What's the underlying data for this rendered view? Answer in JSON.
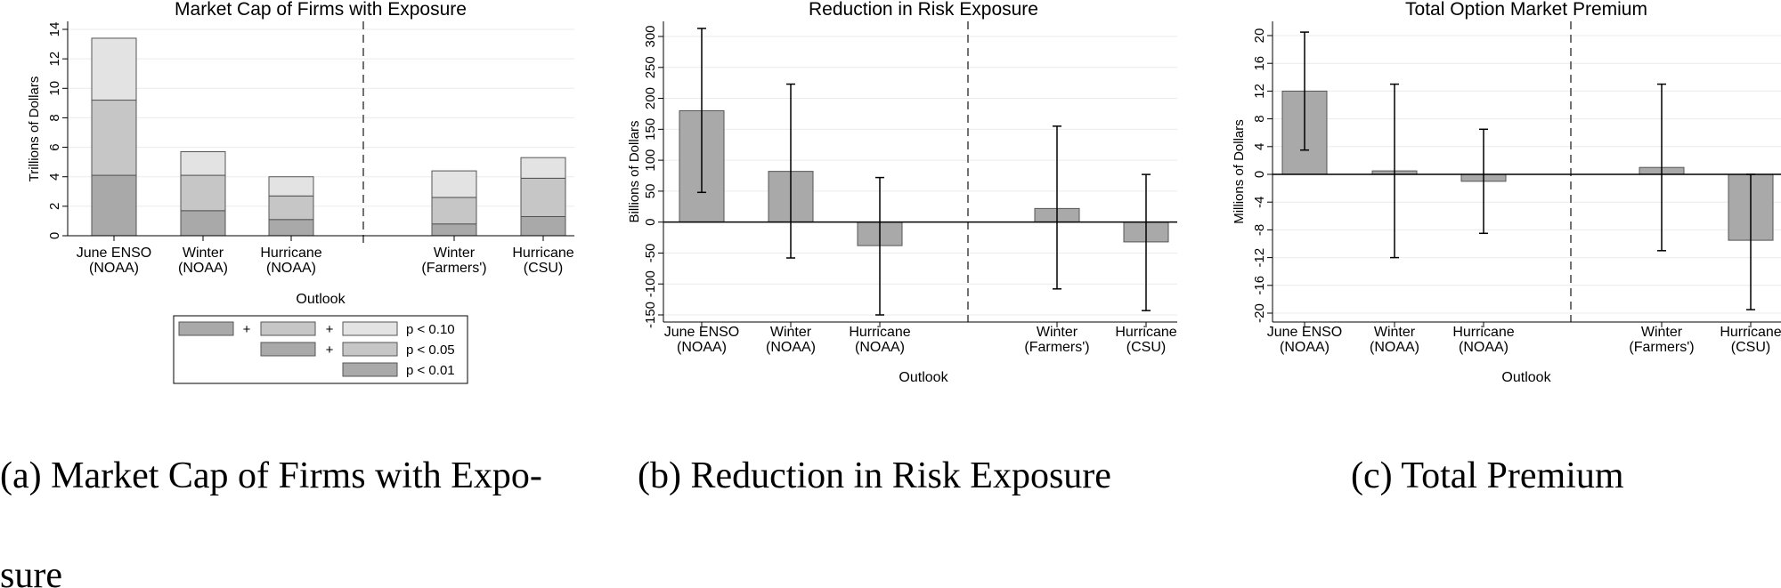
{
  "chart_data": [
    {
      "type": "bar",
      "stacked": true,
      "title": "Market Cap of Firms with Exposure",
      "xlabel": "Outlook",
      "ylabel": "Trillions of Dollars",
      "ylim": [
        0,
        14
      ],
      "yticks": [
        0,
        2,
        4,
        6,
        8,
        10,
        12,
        14
      ],
      "categories": [
        {
          "line1": "June ENSO",
          "line2": "(NOAA)"
        },
        {
          "line1": "Winter",
          "line2": "(NOAA)"
        },
        {
          "line1": "Hurricane",
          "line2": "(NOAA)"
        },
        {
          "line1": "Winter",
          "line2": "(Farmers')"
        },
        {
          "line1": "Hurricane",
          "line2": "(CSU)"
        }
      ],
      "series": [
        {
          "name": "p < 0.01",
          "color": "#a9a9a9",
          "values": [
            4.1,
            1.7,
            1.1,
            0.8,
            1.3
          ]
        },
        {
          "name": "p < 0.05",
          "color": "#c6c6c6",
          "values": [
            5.1,
            2.4,
            1.6,
            1.8,
            2.6
          ]
        },
        {
          "name": "p < 0.10",
          "color": "#e3e3e3",
          "values": [
            4.2,
            1.6,
            1.3,
            1.8,
            1.4
          ]
        }
      ],
      "legend": {
        "row1_label": "p < 0.10",
        "row2_label": "p < 0.05",
        "row3_label": "p < 0.01",
        "plus": "+",
        "placement": "bottom"
      }
    },
    {
      "type": "bar",
      "error_bars": true,
      "title": "Reduction in Risk Exposure",
      "xlabel": "Outlook",
      "ylabel": "Billions of Dollars",
      "ylim": [
        -150,
        300
      ],
      "yticks": [
        -150,
        -100,
        -50,
        0,
        50,
        100,
        150,
        200,
        250,
        300
      ],
      "categories": [
        {
          "line1": "June ENSO",
          "line2": "(NOAA)"
        },
        {
          "line1": "Winter",
          "line2": "(NOAA)"
        },
        {
          "line1": "Hurricane",
          "line2": "(NOAA)"
        },
        {
          "line1": "Winter",
          "line2": "(Farmers')"
        },
        {
          "line1": "Hurricane",
          "line2": "(CSU)"
        }
      ],
      "values": [
        180,
        82,
        -38,
        22,
        -32
      ],
      "ci_low": [
        48,
        -58,
        -150,
        -108,
        -143
      ],
      "ci_high": [
        313,
        223,
        72,
        155,
        77
      ]
    },
    {
      "type": "bar",
      "error_bars": true,
      "title": "Total Option Market Premium",
      "xlabel": "Outlook",
      "ylabel": "Millions of Dollars",
      "ylim": [
        -20,
        20
      ],
      "yticks": [
        -20,
        -16,
        -12,
        -8,
        -4,
        0,
        4,
        8,
        12,
        16,
        20
      ],
      "categories": [
        {
          "line1": "June ENSO",
          "line2": "(NOAA)"
        },
        {
          "line1": "Winter",
          "line2": "(NOAA)"
        },
        {
          "line1": "Hurricane",
          "line2": "(NOAA)"
        },
        {
          "line1": "Winter",
          "line2": "(Farmers')"
        },
        {
          "line1": "Hurricane",
          "line2": "(CSU)"
        }
      ],
      "values": [
        12,
        0.5,
        -1,
        1,
        -9.5
      ],
      "ci_low": [
        3.5,
        -12,
        -8.5,
        -11,
        -19.5
      ],
      "ci_high": [
        20.5,
        13,
        6.5,
        13,
        0
      ]
    }
  ],
  "captions": {
    "a_line1": "(a)  Market Cap of Firms with Expo-",
    "a_line2": "sure",
    "b": "(b)  Reduction in Risk Exposure",
    "c": "(c)  Total Premium"
  },
  "colors": {
    "bar": "#a9a9a9",
    "grid": "#ebebeb",
    "axis": "#000000"
  }
}
